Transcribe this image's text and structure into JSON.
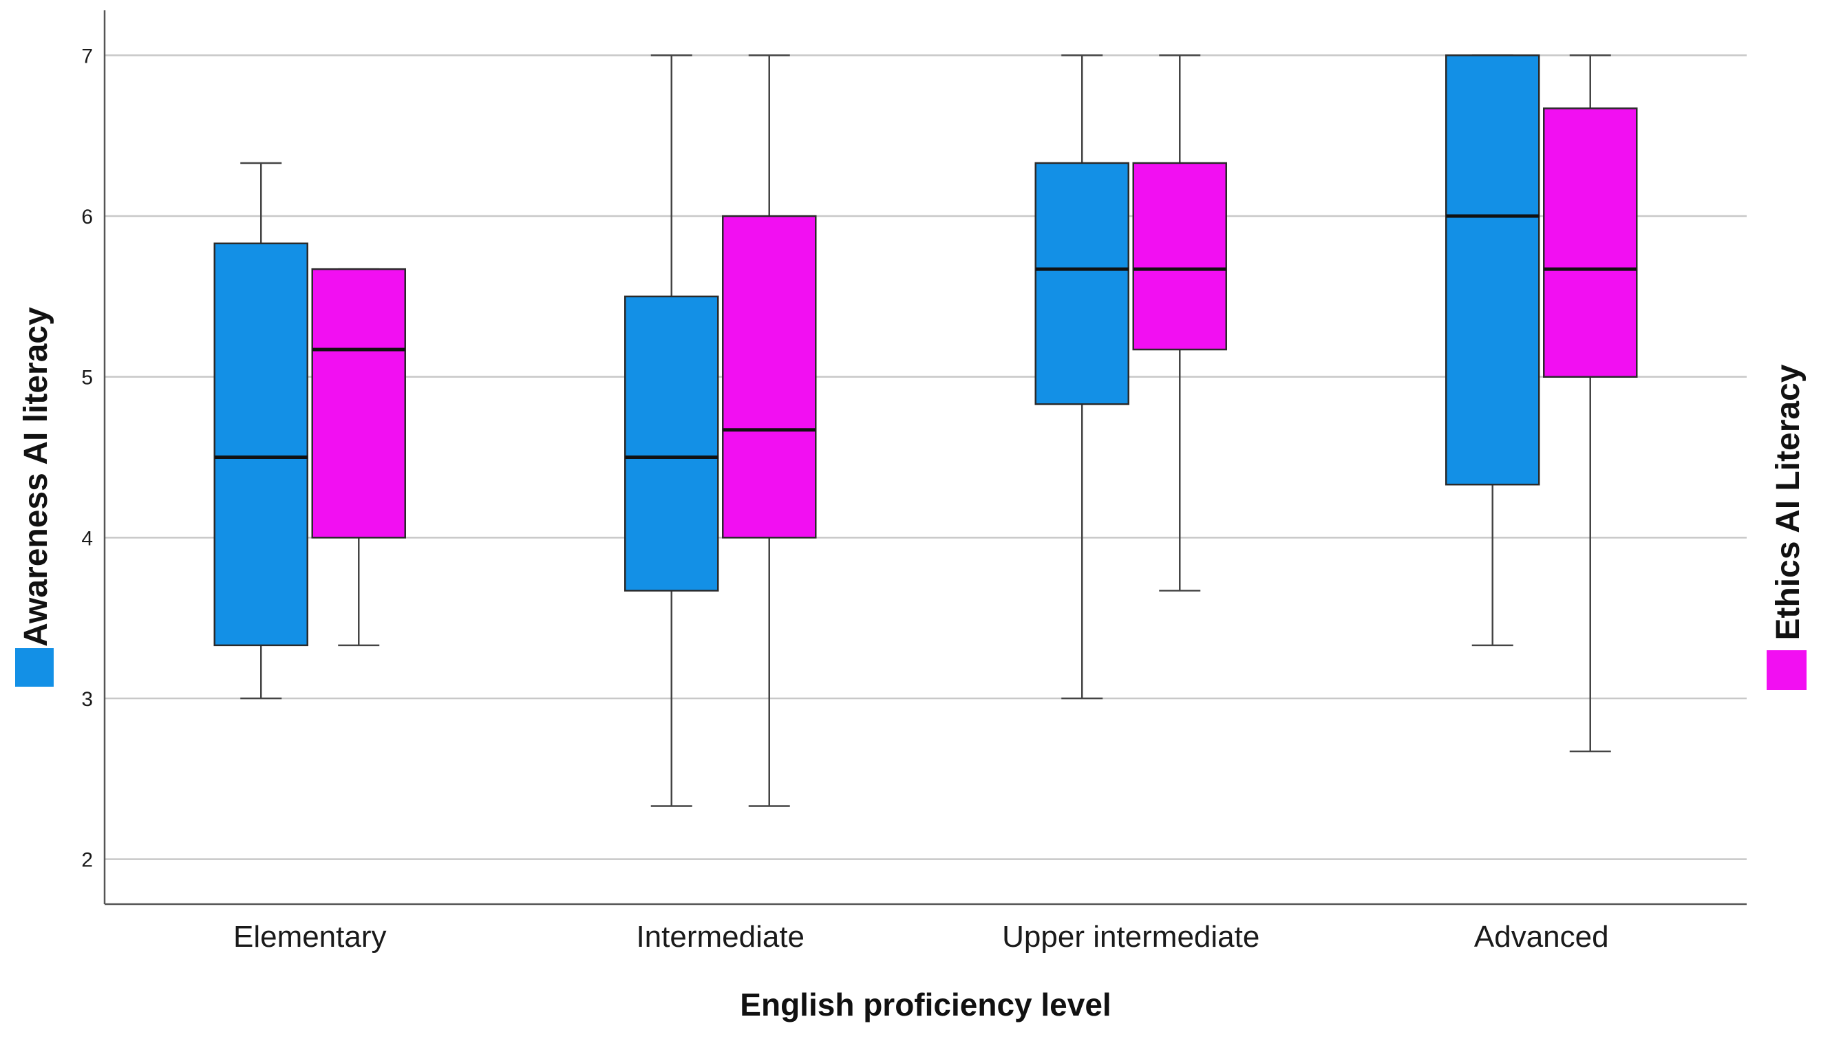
{
  "chart_data": {
    "type": "boxplot",
    "title": "",
    "xlabel": "English proficiency level",
    "ylabel_left": "Awareness AI literacy",
    "ylabel_right": "Ethics AI Literacy",
    "ylim": [
      1.72,
      7.28
    ],
    "yticks": [
      2,
      3,
      4,
      5,
      6,
      7
    ],
    "grid": true,
    "categories": [
      "Elementary",
      "Intermediate",
      "Upper intermediate",
      "Advanced"
    ],
    "series": [
      {
        "name": "Awareness AI literacy",
        "color": "#1390e6",
        "boxes": [
          {
            "min": 3.0,
            "q1": 3.33,
            "median": 4.5,
            "q3": 5.83,
            "max": 6.33
          },
          {
            "min": 2.33,
            "q1": 3.67,
            "median": 4.5,
            "q3": 5.5,
            "max": 7.0
          },
          {
            "min": 3.0,
            "q1": 4.83,
            "median": 5.67,
            "q3": 6.33,
            "max": 7.0
          },
          {
            "min": 3.33,
            "q1": 4.33,
            "median": 6.0,
            "q3": 7.0,
            "max": 7.0
          }
        ]
      },
      {
        "name": "Ethics AI Literacy",
        "color": "#f20ff2",
        "boxes": [
          {
            "min": 3.33,
            "q1": 4.0,
            "median": 5.17,
            "q3": 5.67,
            "max": 5.67
          },
          {
            "min": 2.33,
            "q1": 4.0,
            "median": 4.67,
            "q3": 6.0,
            "max": 7.0
          },
          {
            "min": 3.67,
            "q1": 5.17,
            "median": 5.67,
            "q3": 6.33,
            "max": 7.0
          },
          {
            "min": 2.67,
            "q1": 5.0,
            "median": 5.67,
            "q3": 6.67,
            "max": 7.0
          }
        ]
      }
    ]
  }
}
